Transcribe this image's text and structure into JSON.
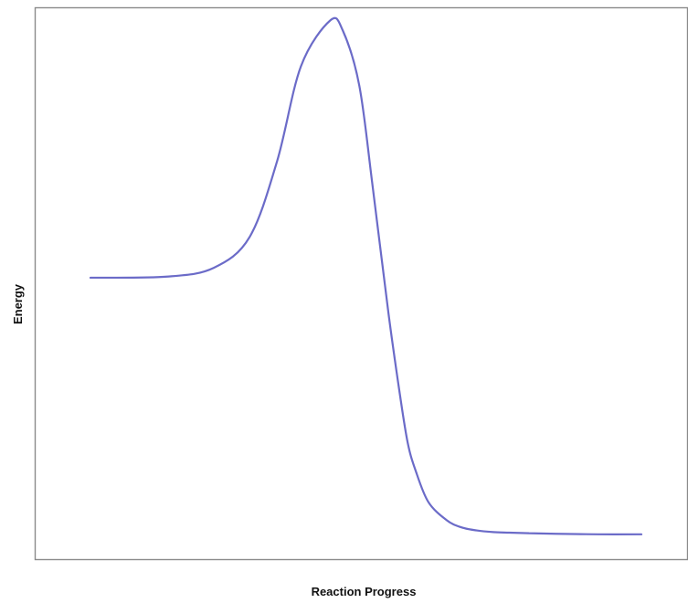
{
  "chart_data": {
    "type": "line",
    "title": "",
    "xlabel": "Reaction Progress",
    "ylabel": "Energy",
    "xlim": [
      0,
      1
    ],
    "ylim": [
      0,
      1
    ],
    "grid": false,
    "legend": "none",
    "series": [
      {
        "color": "#6b6bc8",
        "x": [
          0.0,
          0.139,
          0.224,
          0.289,
          0.339,
          0.382,
          0.435,
          0.458,
          0.488,
          0.512,
          0.541,
          0.562,
          0.576,
          0.59,
          0.613,
          0.646,
          0.672,
          0.701,
          0.731,
          0.76,
          0.796,
          0.845,
          0.92,
          1.0
        ],
        "y": [
          0.51,
          0.512,
          0.528,
          0.584,
          0.722,
          0.893,
          0.976,
          0.958,
          0.858,
          0.677,
          0.445,
          0.296,
          0.21,
          0.161,
          0.104,
          0.071,
          0.058,
          0.052,
          0.049,
          0.048,
          0.047,
          0.046,
          0.045,
          0.045
        ]
      }
    ]
  }
}
